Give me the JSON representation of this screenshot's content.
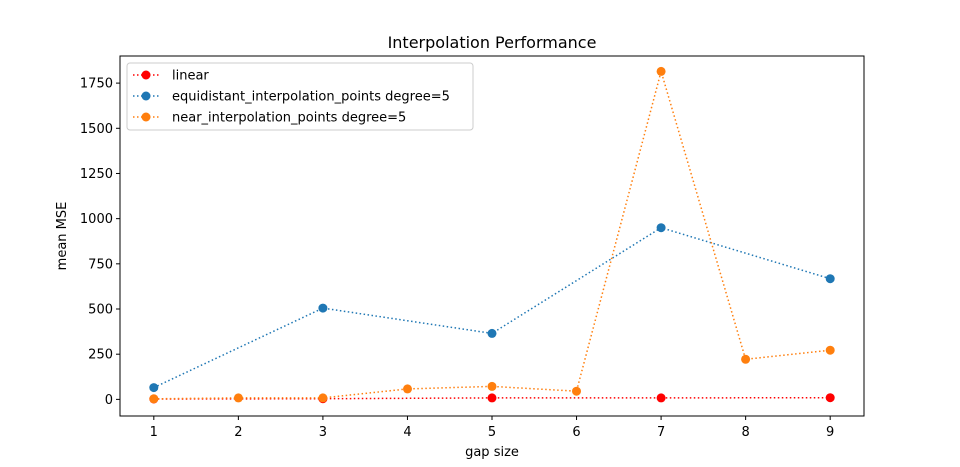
{
  "chart_data": {
    "type": "line",
    "title": "Interpolation Performance",
    "xlabel": "gap size",
    "ylabel": "mean MSE",
    "xlim": [
      0.6,
      9.4
    ],
    "ylim": [
      -92,
      1900
    ],
    "xticks": [
      1,
      2,
      3,
      4,
      5,
      6,
      7,
      8,
      9
    ],
    "yticks": [
      0,
      250,
      500,
      750,
      1000,
      1250,
      1500,
      1750
    ],
    "grid": false,
    "legend_placement": "top-left",
    "series": [
      {
        "name": "linear",
        "color": "#ff0000",
        "linestyle": "dotted",
        "marker": "circle",
        "x": [
          1,
          3,
          5,
          7,
          9
        ],
        "values": [
          2,
          4,
          8,
          8,
          9
        ]
      },
      {
        "name": "equidistant_interpolation_points degree=5",
        "color": "#1f77b4",
        "linestyle": "dotted",
        "marker": "circle",
        "x": [
          1,
          3,
          5,
          7,
          9
        ],
        "values": [
          65,
          505,
          365,
          950,
          668
        ]
      },
      {
        "name": "near_interpolation_points degree=5",
        "color": "#ff7f0e",
        "linestyle": "dotted",
        "marker": "circle",
        "x": [
          1,
          2,
          3,
          4,
          5,
          6,
          7,
          8,
          9
        ],
        "values": [
          3,
          8,
          8,
          58,
          72,
          45,
          1815,
          222,
          272
        ]
      }
    ]
  }
}
